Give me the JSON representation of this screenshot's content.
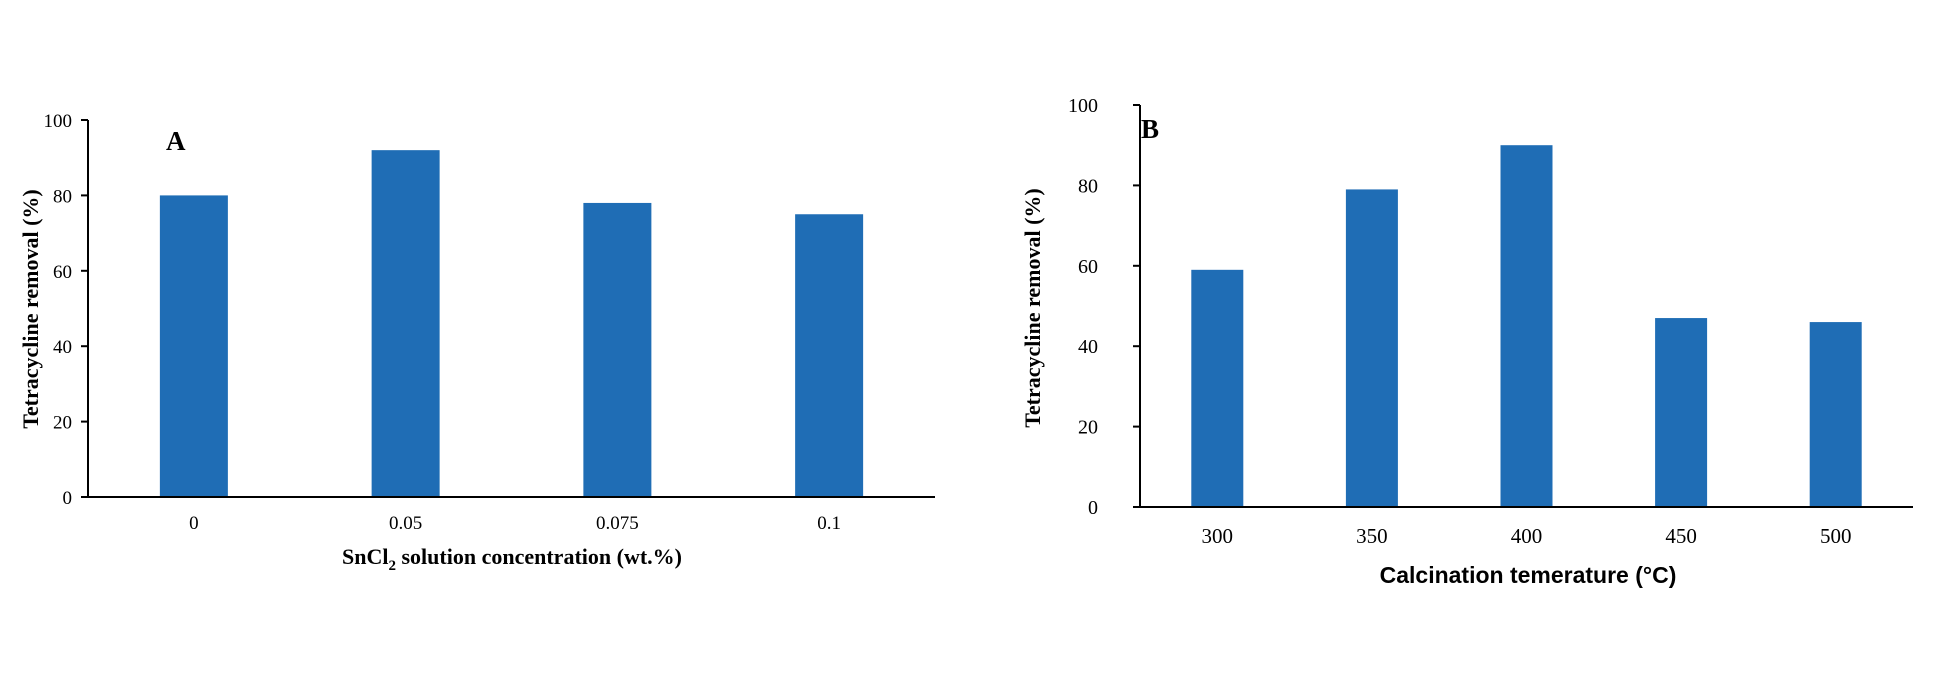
{
  "colors": {
    "bar": "#1f6db5",
    "axis": "#000000",
    "background": "#ffffff"
  },
  "chart_data": [
    {
      "type": "bar",
      "panel_label": "A",
      "categories": [
        "0",
        "0.05",
        "0.075",
        "0.1"
      ],
      "values": [
        80,
        92,
        78,
        75
      ],
      "xlabel": "SnCl",
      "xlabel_sub": "2",
      "xlabel_rest": " solution concentration (wt.%)",
      "ylabel": "Tetracycline removal (%)",
      "ylim": [
        0,
        100
      ],
      "yticks": [
        "0",
        "20",
        "40",
        "60",
        "80",
        "100"
      ],
      "grid": false,
      "legend": "none"
    },
    {
      "type": "bar",
      "panel_label": "B",
      "categories": [
        "300",
        "350",
        "400",
        "450",
        "500"
      ],
      "values": [
        59,
        79,
        90,
        47,
        46
      ],
      "xlabel": "Calcination temerature (°C)",
      "ylabel": "Tetracycline removal (%)",
      "ylim": [
        0,
        100
      ],
      "yticks": [
        "0",
        "20",
        "40",
        "60",
        "80",
        "100"
      ],
      "grid": false,
      "legend": "none"
    }
  ]
}
